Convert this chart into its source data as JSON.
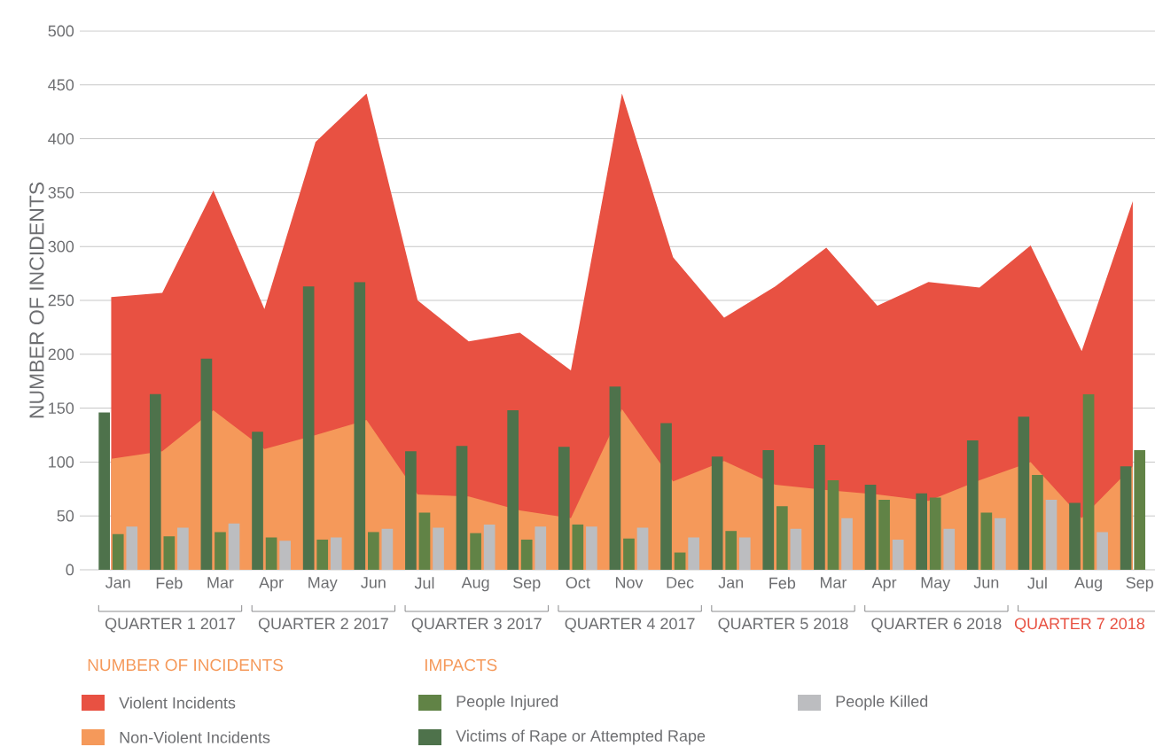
{
  "chart_data": {
    "type": "bar",
    "ylabel": "NUMBER OF INCIDENTS",
    "categories": [
      "Jan",
      "Feb",
      "Mar",
      "Apr",
      "May",
      "Jun",
      "Jul",
      "Aug",
      "Sep",
      "Oct",
      "Nov",
      "Dec",
      "Jan",
      "Feb",
      "Mar",
      "Apr",
      "May",
      "Jun",
      "Jul",
      "Aug",
      "Sep"
    ],
    "series": [
      {
        "name": "Violent Incidents",
        "type": "area",
        "color": "#e85142",
        "values": [
          253,
          257,
          352,
          242,
          397,
          442,
          250,
          212,
          220,
          185,
          442,
          290,
          234,
          263,
          299,
          245,
          267,
          262,
          301,
          203,
          342
        ]
      },
      {
        "name": "Non-Violent Incidents",
        "type": "area",
        "color": "#f5995a",
        "values": [
          103,
          110,
          148,
          112,
          125,
          139,
          70,
          68,
          55,
          48,
          149,
          82,
          101,
          79,
          74,
          70,
          64,
          83,
          100,
          48,
          96
        ]
      },
      {
        "name": "Victims of Rape or Attempted Rape",
        "color": "#4e724b",
        "values": [
          146,
          163,
          196,
          128,
          263,
          267,
          110,
          115,
          148,
          114,
          170,
          136,
          105,
          111,
          116,
          79,
          71,
          120,
          142,
          62,
          96
        ]
      },
      {
        "name": "People Injured",
        "color": "#618346",
        "values": [
          33,
          31,
          35,
          30,
          28,
          35,
          53,
          34,
          28,
          42,
          29,
          16,
          36,
          59,
          83,
          65,
          67,
          53,
          88,
          163,
          111
        ]
      },
      {
        "name": "People Killed",
        "color": "#bcbdc0",
        "values": [
          40,
          39,
          43,
          27,
          30,
          38,
          39,
          42,
          40,
          40,
          39,
          30,
          30,
          38,
          48,
          28,
          38,
          48,
          65,
          35,
          null
        ]
      }
    ],
    "ylim": [
      0,
      500
    ],
    "yticks": [
      0,
      50,
      100,
      150,
      200,
      250,
      300,
      350,
      400,
      450,
      500
    ],
    "grid": "y",
    "legend": "bottom",
    "annotations": [
      "QUARTER 1 2017",
      "QUARTER 2 2017",
      "QUARTER 3 2017",
      "QUARTER 4 2017",
      "QUARTER 5 2018",
      "QUARTER 6 2018",
      "QUARTER 7 2018",
      "NUMBER OF INCIDENTS",
      "IMPACTS"
    ]
  }
}
